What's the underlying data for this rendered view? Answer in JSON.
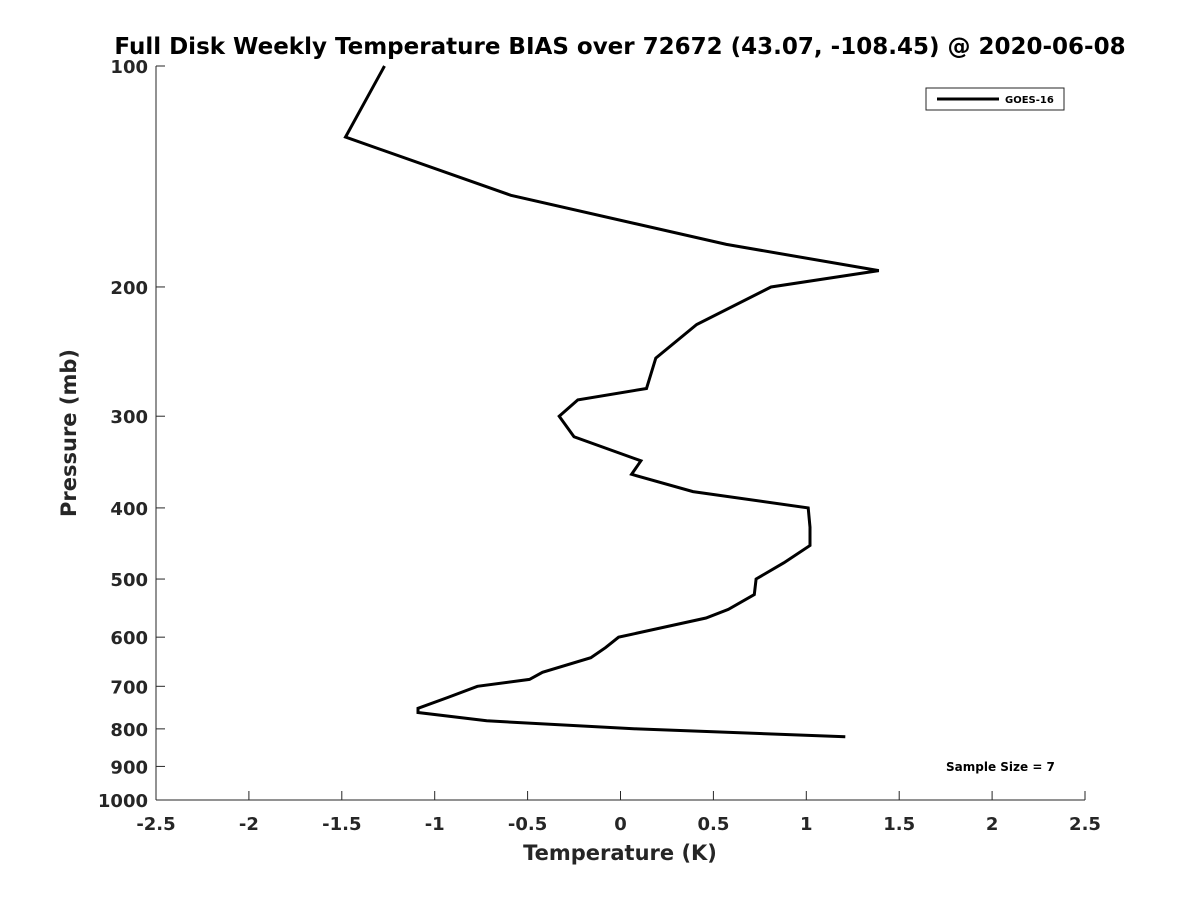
{
  "chart_data": {
    "type": "line",
    "title": "Full Disk Weekly Temperature BIAS over 72672 (43.07, -108.45) @ 2020-06-08",
    "xlabel": "Temperature (K)",
    "ylabel": "Pressure (mb)",
    "xlim": [
      -2.5,
      2.5
    ],
    "ylim": [
      100,
      1000
    ],
    "y_scale": "log",
    "y_reversed": true,
    "x_ticks": [
      -2.5,
      -2,
      -1.5,
      -1,
      -0.5,
      0,
      0.5,
      1,
      1.5,
      2,
      2.5
    ],
    "x_tick_labels": [
      "-2.5",
      "-2",
      "-1.5",
      "-1",
      "-0.5",
      "0",
      "0.5",
      "1",
      "1.5",
      "2",
      "2.5"
    ],
    "y_ticks": [
      100,
      200,
      300,
      400,
      500,
      600,
      700,
      800,
      900,
      1000
    ],
    "y_tick_labels": [
      "100",
      "200",
      "300",
      "400",
      "500",
      "600",
      "700",
      "800",
      "900",
      "1000"
    ],
    "grid": false,
    "legend_position": "top-right",
    "series": [
      {
        "name": "GOES-16",
        "color": "#000000",
        "points": [
          {
            "x": -1.27,
            "y": 100
          },
          {
            "x": -1.48,
            "y": 125
          },
          {
            "x": -0.59,
            "y": 150
          },
          {
            "x": 0.57,
            "y": 175
          },
          {
            "x": 1.39,
            "y": 190
          },
          {
            "x": 0.81,
            "y": 200
          },
          {
            "x": 0.41,
            "y": 225
          },
          {
            "x": 0.19,
            "y": 250
          },
          {
            "x": 0.14,
            "y": 275
          },
          {
            "x": -0.23,
            "y": 285
          },
          {
            "x": -0.33,
            "y": 300
          },
          {
            "x": -0.25,
            "y": 320
          },
          {
            "x": 0.11,
            "y": 345
          },
          {
            "x": 0.06,
            "y": 360
          },
          {
            "x": 0.39,
            "y": 380
          },
          {
            "x": 1.01,
            "y": 400
          },
          {
            "x": 1.02,
            "y": 425
          },
          {
            "x": 1.02,
            "y": 450
          },
          {
            "x": 0.88,
            "y": 475
          },
          {
            "x": 0.73,
            "y": 500
          },
          {
            "x": 0.72,
            "y": 525
          },
          {
            "x": 0.58,
            "y": 550
          },
          {
            "x": 0.46,
            "y": 565
          },
          {
            "x": -0.01,
            "y": 600
          },
          {
            "x": -0.08,
            "y": 620
          },
          {
            "x": -0.16,
            "y": 640
          },
          {
            "x": -0.42,
            "y": 670
          },
          {
            "x": -0.49,
            "y": 685
          },
          {
            "x": -0.77,
            "y": 700
          },
          {
            "x": -0.93,
            "y": 725
          },
          {
            "x": -1.09,
            "y": 750
          },
          {
            "x": -1.09,
            "y": 760
          },
          {
            "x": -0.72,
            "y": 780
          },
          {
            "x": 0.09,
            "y": 800
          },
          {
            "x": 1.21,
            "y": 820
          }
        ]
      }
    ],
    "annotations": [
      {
        "text": "Sample Size = 7",
        "position": "bottom-right"
      }
    ]
  }
}
